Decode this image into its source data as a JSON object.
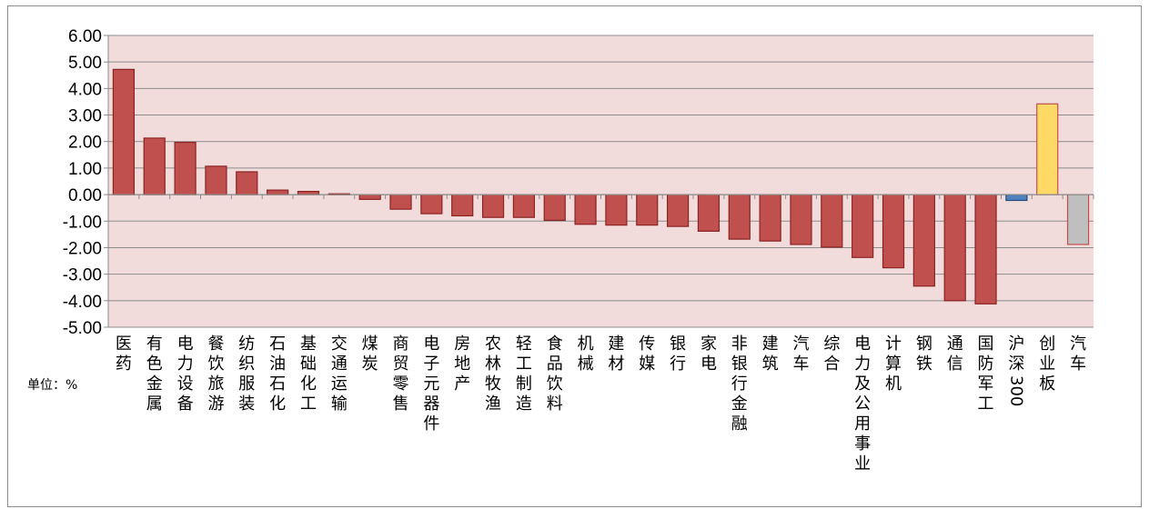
{
  "chart_data": {
    "type": "bar",
    "unit_label": "单位：%",
    "ylim": [
      -5,
      6
    ],
    "yticks": [
      "6.00",
      "5.00",
      "4.00",
      "3.00",
      "2.00",
      "1.00",
      "0.00",
      "-1.00",
      "-2.00",
      "-3.00",
      "-4.00",
      "-5.00"
    ],
    "grid": true,
    "plot_background": "#f2dcdb",
    "categories": [
      "医药",
      "有色金属",
      "电力设备",
      "餐饮旅游",
      "纺织服装",
      "石油石化",
      "基础化工",
      "交通运输",
      "煤炭",
      "商贸零售",
      "电子元器件",
      "房地产",
      "农林牧渔",
      "轻工制造",
      "食品饮料",
      "机械",
      "建材",
      "传媒",
      "银行",
      "家电",
      "非银行金融",
      "建筑",
      "汽车",
      "综合",
      "电力及公用事业",
      "计算机",
      "钢铁",
      "通信",
      "国防军工",
      "沪深300",
      "创业板",
      "汽车"
    ],
    "values": [
      4.72,
      2.13,
      1.97,
      1.07,
      0.86,
      0.17,
      0.12,
      0.03,
      -0.18,
      -0.55,
      -0.72,
      -0.8,
      -0.86,
      -0.86,
      -0.97,
      -1.12,
      -1.15,
      -1.15,
      -1.2,
      -1.38,
      -1.68,
      -1.75,
      -1.88,
      -1.98,
      -2.37,
      -2.76,
      -3.45,
      -4.0,
      -4.12,
      -0.22,
      3.42,
      -1.88
    ],
    "colors": [
      "#c0504d",
      "#c0504d",
      "#c0504d",
      "#c0504d",
      "#c0504d",
      "#c0504d",
      "#c0504d",
      "#c0504d",
      "#c0504d",
      "#c0504d",
      "#c0504d",
      "#c0504d",
      "#c0504d",
      "#c0504d",
      "#c0504d",
      "#c0504d",
      "#c0504d",
      "#c0504d",
      "#c0504d",
      "#c0504d",
      "#c0504d",
      "#c0504d",
      "#c0504d",
      "#c0504d",
      "#c0504d",
      "#c0504d",
      "#c0504d",
      "#c0504d",
      "#c0504d",
      "#4f81bd",
      "#ffd966",
      "#bfbfbf"
    ],
    "outline_colors": [
      "#8b2323",
      "#8b2323",
      "#8b2323",
      "#8b2323",
      "#8b2323",
      "#8b2323",
      "#8b2323",
      "#8b2323",
      "#8b2323",
      "#8b2323",
      "#8b2323",
      "#8b2323",
      "#8b2323",
      "#8b2323",
      "#8b2323",
      "#8b2323",
      "#8b2323",
      "#8b2323",
      "#8b2323",
      "#8b2323",
      "#8b2323",
      "#8b2323",
      "#8b2323",
      "#8b2323",
      "#8b2323",
      "#8b2323",
      "#8b2323",
      "#8b2323",
      "#8b2323",
      "#1f497d",
      "#c0504d",
      "#c0504d"
    ]
  }
}
